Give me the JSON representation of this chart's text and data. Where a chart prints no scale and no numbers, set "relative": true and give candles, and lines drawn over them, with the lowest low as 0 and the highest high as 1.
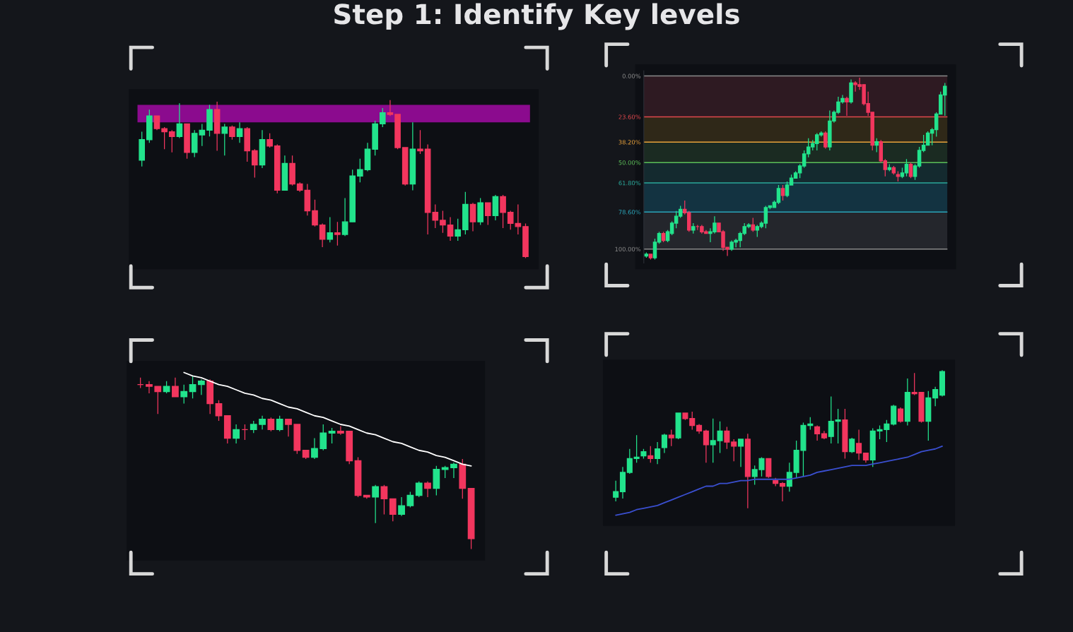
{
  "chart_data": [
    {
      "type": "candlestick",
      "title": "Step 1: Identify Key levels",
      "relative": true,
      "colors": [
        "#22e38c",
        "#22e38c",
        "#f2365e",
        "#f2365e",
        "#f2365e",
        "#22e38c",
        "#f2365e",
        "#22e38c",
        "#22e38c",
        "#22e38c",
        "#f2365e",
        "#22e38c",
        "#f2365e",
        "#22e38c",
        "#f2365e",
        "#f2365e",
        "#22e38c",
        "#f2365e",
        "#f2365e",
        "#22e38c",
        "#f2365e",
        "#f2365e",
        "#f2365e",
        "#f2365e",
        "#f2365e",
        "#22e38c",
        "#f2365e",
        "#22e38c",
        "#22e38c",
        "#22e38c",
        "#22e38c",
        "#22e38c",
        "#22e38c",
        "#f2365e",
        "#f2365e",
        "#f2365e",
        "#22e38c",
        "#f2365e",
        "#f2365e",
        "#f2365e",
        "#f2365e",
        "#f2365e",
        "#22e38c",
        "#22e38c",
        "#f2365e",
        "#22e38c",
        "#f2365e",
        "#22e38c",
        "#f2365e",
        "#f2365e",
        "#f2365e",
        "#f2365e"
      ],
      "categories": [
        null,
        null,
        null,
        null,
        null,
        null,
        null,
        null,
        null,
        null,
        null,
        null,
        null,
        null,
        null,
        null,
        null,
        null,
        null,
        null,
        null,
        null,
        null,
        null,
        null,
        null,
        null,
        null,
        null,
        null,
        null,
        null,
        null,
        null,
        null,
        null,
        null,
        null,
        null,
        null,
        null,
        null,
        null,
        null,
        null,
        null,
        null,
        null,
        null,
        null,
        null,
        null
      ],
      "ohlc": [
        [
          0.62,
          0.8,
          0.58,
          0.75
        ],
        [
          0.75,
          0.94,
          0.73,
          0.9
        ],
        [
          0.9,
          0.9,
          0.81,
          0.82
        ],
        [
          0.82,
          0.83,
          0.69,
          0.8
        ],
        [
          0.8,
          0.81,
          0.67,
          0.77
        ],
        [
          0.77,
          0.98,
          0.76,
          0.85
        ],
        [
          0.85,
          0.85,
          0.63,
          0.67
        ],
        [
          0.67,
          0.81,
          0.64,
          0.79
        ],
        [
          0.78,
          0.85,
          0.71,
          0.81
        ],
        [
          0.81,
          0.97,
          0.77,
          0.94
        ],
        [
          0.94,
          0.99,
          0.68,
          0.79
        ],
        [
          0.79,
          0.85,
          0.65,
          0.83
        ],
        [
          0.83,
          0.84,
          0.75,
          0.77
        ],
        [
          0.77,
          0.86,
          0.73,
          0.82
        ],
        [
          0.82,
          0.83,
          0.61,
          0.68
        ],
        [
          0.68,
          0.69,
          0.51,
          0.59
        ],
        [
          0.59,
          0.81,
          0.57,
          0.75
        ],
        [
          0.75,
          0.79,
          0.7,
          0.71
        ],
        [
          0.71,
          0.72,
          0.41,
          0.43
        ],
        [
          0.43,
          0.65,
          0.43,
          0.6
        ],
        [
          0.6,
          0.65,
          0.46,
          0.47
        ],
        [
          0.47,
          0.48,
          0.42,
          0.43
        ],
        [
          0.43,
          0.47,
          0.27,
          0.3
        ],
        [
          0.3,
          0.37,
          0.2,
          0.21
        ],
        [
          0.21,
          0.22,
          0.07,
          0.12
        ],
        [
          0.12,
          0.26,
          0.1,
          0.16
        ],
        [
          0.16,
          0.23,
          0.08,
          0.15
        ],
        [
          0.15,
          0.38,
          0.14,
          0.23
        ],
        [
          0.23,
          0.56,
          0.23,
          0.52
        ],
        [
          0.52,
          0.63,
          0.48,
          0.56
        ],
        [
          0.56,
          0.73,
          0.55,
          0.69
        ],
        [
          0.69,
          0.87,
          0.65,
          0.85
        ],
        [
          0.85,
          0.95,
          0.83,
          0.92
        ],
        [
          0.92,
          1.0,
          0.9,
          0.91
        ],
        [
          0.91,
          0.91,
          0.69,
          0.7
        ],
        [
          0.7,
          0.7,
          0.46,
          0.47
        ],
        [
          0.47,
          0.86,
          0.43,
          0.69
        ],
        [
          0.69,
          0.81,
          0.66,
          0.68
        ],
        [
          0.69,
          0.72,
          0.15,
          0.29
        ],
        [
          0.29,
          0.34,
          0.19,
          0.24
        ],
        [
          0.24,
          0.3,
          0.16,
          0.21
        ],
        [
          0.21,
          0.26,
          0.11,
          0.14
        ],
        [
          0.14,
          0.25,
          0.11,
          0.18
        ],
        [
          0.18,
          0.42,
          0.15,
          0.34
        ],
        [
          0.34,
          0.35,
          0.17,
          0.23
        ],
        [
          0.23,
          0.38,
          0.21,
          0.35
        ],
        [
          0.35,
          0.35,
          0.21,
          0.27
        ],
        [
          0.27,
          0.4,
          0.24,
          0.39
        ],
        [
          0.39,
          0.4,
          0.19,
          0.29
        ],
        [
          0.29,
          0.3,
          0.18,
          0.22
        ],
        [
          0.22,
          0.34,
          0.15,
          0.2
        ],
        [
          0.2,
          0.22,
          0.0,
          0.01
        ]
      ],
      "bands": [
        {
          "axis": "y",
          "from": 0.86,
          "to": 0.97,
          "color": "#8b0b8e"
        }
      ]
    },
    {
      "type": "candlestick",
      "ylim": [
        108,
        -3
      ],
      "tick_labels": "y",
      "yticks": [
        {
          "value": 0,
          "label": "0.00%"
        },
        {
          "value": 23.6,
          "label": "23.60%"
        },
        {
          "value": 38.2,
          "label": "38.20%"
        },
        {
          "value": 50,
          "label": "50.00%"
        },
        {
          "value": 61.8,
          "label": "61.80%"
        },
        {
          "value": 78.6,
          "label": "78.60%"
        },
        {
          "value": 100,
          "label": "100.00%"
        }
      ],
      "colors": [
        "#22e38c",
        "#f2365e",
        "#22e38c",
        "#22e38c",
        "#f2365e",
        "#22e38c",
        "#22e38c",
        "#22e38c",
        "#22e38c",
        "#f2365e",
        "#f2365e",
        "#22e38c",
        "#f2365e",
        "#f2365e",
        "#f2365e",
        "#22e38c",
        "#22e38c",
        "#f2365e",
        "#f2365e",
        "#f2365e",
        "#22e38c",
        "#22e38c",
        "#22e38c",
        "#22e38c",
        "#22e38c",
        "#f2365e",
        "#22e38c",
        "#22e38c",
        "#22e38c",
        "#22e38c",
        "#22e38c",
        "#22e38c",
        "#f2365e",
        "#22e38c",
        "#22e38c",
        "#22e38c",
        "#22e38c",
        "#22e38c",
        "#22e38c",
        "#22e38c",
        "#22e38c",
        "#22e38c",
        "#f2365e",
        "#22e38c",
        "#22e38c",
        "#22e38c",
        "#22e38c",
        "#f2365e",
        "#22e38c",
        "#f2365e",
        "#f2365e",
        "#f2365e",
        "#f2365e",
        "#f2365e",
        "#22e38c",
        "#f2365e",
        "#f2365e",
        "#22e38c",
        "#f2365e",
        "#f2365e",
        "#22e38c",
        "#22e38c",
        "#f2365e",
        "#22e38c",
        "#22e38c",
        "#22e38c",
        "#22e38c",
        "#22e38c",
        "#22e38c",
        "#22e38c",
        "#22e38c"
      ],
      "categories": [
        null,
        null,
        null,
        null,
        null,
        null,
        null,
        null,
        null,
        null,
        null,
        null,
        null,
        null,
        null,
        null,
        null,
        null,
        null,
        null,
        null,
        null,
        null,
        null,
        null,
        null,
        null,
        null,
        null,
        null,
        null,
        null,
        null,
        null,
        null,
        null,
        null,
        null,
        null,
        null,
        null,
        null,
        null,
        null,
        null,
        null,
        null,
        null,
        null,
        null,
        null,
        null,
        null,
        null,
        null,
        null,
        null,
        null,
        null,
        null,
        null,
        null,
        null,
        null,
        null,
        null,
        null,
        null,
        null,
        null,
        null
      ],
      "ohlc": [
        [
          104,
          105,
          102,
          103
        ],
        [
          103,
          106,
          103,
          105
        ],
        [
          105,
          106,
          94,
          96
        ],
        [
          96,
          97,
          90,
          91
        ],
        [
          91,
          96,
          90,
          95
        ],
        [
          95,
          96,
          89,
          90
        ],
        [
          91,
          92,
          84,
          85
        ],
        [
          85,
          88,
          78,
          81
        ],
        [
          81,
          82,
          75,
          77
        ],
        [
          77,
          80,
          72,
          79
        ],
        [
          79,
          90,
          78,
          89
        ],
        [
          89,
          91,
          85,
          87
        ],
        [
          87,
          89,
          86,
          87
        ],
        [
          87,
          91,
          86,
          90
        ],
        [
          90,
          91,
          89,
          91
        ],
        [
          91,
          96,
          88,
          90
        ],
        [
          90,
          91,
          81,
          85
        ],
        [
          85,
          90,
          85,
          90
        ],
        [
          90,
          101,
          89,
          99
        ],
        [
          99,
          104,
          99,
          100
        ],
        [
          100,
          101,
          95,
          96
        ],
        [
          96,
          99,
          94,
          95
        ],
        [
          95,
          99,
          90,
          91
        ],
        [
          91,
          92,
          85,
          87
        ],
        [
          87,
          88,
          85,
          86
        ],
        [
          86,
          90,
          82,
          89
        ],
        [
          89,
          93,
          86,
          87
        ],
        [
          87,
          88,
          84,
          85
        ],
        [
          85,
          88,
          75,
          76
        ],
        [
          76,
          77,
          75,
          75
        ],
        [
          76,
          76,
          72,
          73
        ],
        [
          73,
          74,
          63,
          65
        ],
        [
          65,
          72,
          63,
          69
        ],
        [
          69,
          70,
          61,
          63
        ],
        [
          63,
          63,
          57,
          59
        ],
        [
          59,
          59,
          55,
          56
        ],
        [
          56,
          59,
          51,
          52
        ],
        [
          52,
          53,
          43,
          45
        ],
        [
          45,
          47,
          36,
          41
        ],
        [
          41,
          43,
          37,
          39
        ],
        [
          39,
          43,
          33,
          34
        ],
        [
          34,
          35,
          32,
          33
        ],
        [
          33,
          42,
          32,
          41
        ],
        [
          41,
          43,
          20,
          26
        ],
        [
          26,
          27,
          20,
          21
        ],
        [
          21,
          22,
          12,
          15
        ],
        [
          15,
          16,
          11,
          13
        ],
        [
          13,
          23,
          12,
          15
        ],
        [
          15,
          16,
          2,
          4
        ],
        [
          4,
          9,
          3,
          5
        ],
        [
          5,
          8,
          1,
          6
        ],
        [
          5,
          17,
          5,
          16
        ],
        [
          16,
          23,
          9,
          21
        ],
        [
          21,
          43,
          21,
          40
        ],
        [
          40,
          44,
          36,
          38
        ],
        [
          38,
          50,
          37,
          49
        ],
        [
          49,
          58,
          48,
          54
        ],
        [
          54,
          55,
          51,
          53
        ],
        [
          53,
          57,
          52,
          56
        ],
        [
          57,
          61,
          55,
          58
        ],
        [
          58,
          59,
          53,
          56
        ],
        [
          56,
          58,
          48,
          51
        ],
        [
          51,
          59,
          50,
          58
        ],
        [
          58,
          60,
          51,
          52
        ],
        [
          52,
          53,
          41,
          43
        ],
        [
          43,
          44,
          34,
          40
        ],
        [
          40,
          40,
          32,
          33
        ],
        [
          33,
          40,
          30,
          31
        ],
        [
          31,
          35,
          21,
          22
        ],
        [
          22,
          22,
          9,
          11
        ],
        [
          11,
          23,
          4,
          6
        ]
      ],
      "bands": [
        {
          "axis": "y",
          "from": 0,
          "to": 23.6,
          "color": "#2e1a22"
        },
        {
          "axis": "y",
          "from": 23.6,
          "to": 38.2,
          "color": "#2f2818"
        },
        {
          "axis": "y",
          "from": 38.2,
          "to": 50,
          "color": "#1b2b22"
        },
        {
          "axis": "y",
          "from": 50,
          "to": 61.8,
          "color": "#142a2f"
        },
        {
          "axis": "y",
          "from": 61.8,
          "to": 78.6,
          "color": "#133341"
        },
        {
          "axis": "y",
          "from": 78.6,
          "to": 100,
          "color": "#24262c"
        }
      ],
      "ref_lines": [
        {
          "axis": "y",
          "value": 0,
          "color": "#8a8a8a"
        },
        {
          "axis": "y",
          "value": 23.6,
          "color": "#e0474c"
        },
        {
          "axis": "y",
          "value": 38.2,
          "color": "#e8a13a"
        },
        {
          "axis": "y",
          "value": 50,
          "color": "#5bbf58"
        },
        {
          "axis": "y",
          "value": 61.8,
          "color": "#2aa89a"
        },
        {
          "axis": "y",
          "value": 78.6,
          "color": "#2aa4b8"
        },
        {
          "axis": "y",
          "value": 100,
          "color": "#8a8a8a"
        }
      ]
    },
    {
      "type": "candlestick",
      "relative": true,
      "colors": [
        "#f2365e",
        "#f2365e",
        "#f2365e",
        "#22e38c",
        "#f2365e",
        "#22e38c",
        "#22e38c",
        "#22e38c",
        "#f2365e",
        "#f2365e",
        "#f2365e",
        "#22e38c",
        "#f2365e",
        "#22e38c",
        "#22e38c",
        "#f2365e",
        "#22e38c",
        "#f2365e",
        "#f2365e",
        "#f2365e",
        "#22e38c",
        "#22e38c",
        "#22e38c",
        "#f2365e",
        "#f2365e",
        "#f2365e",
        "#f2365e",
        "#22e38c",
        "#f2365e",
        "#f2365e",
        "#22e38c",
        "#22e38c",
        "#22e38c",
        "#f2365e",
        "#22e38c",
        "#22e38c",
        "#22e38c",
        "#f2365e",
        "#f2365e"
      ],
      "categories": [
        null,
        null,
        null,
        null,
        null,
        null,
        null,
        null,
        null,
        null,
        null,
        null,
        null,
        null,
        null,
        null,
        null,
        null,
        null,
        null,
        null,
        null,
        null,
        null,
        null,
        null,
        null,
        null,
        null,
        null,
        null,
        null,
        null,
        null,
        null,
        null,
        null,
        null,
        null
      ],
      "ohlc": [
        [
          0.95,
          0.99,
          0.93,
          0.95
        ],
        [
          0.95,
          0.97,
          0.9,
          0.94
        ],
        [
          0.94,
          0.94,
          0.78,
          0.91
        ],
        [
          0.91,
          0.97,
          0.9,
          0.94
        ],
        [
          0.94,
          0.99,
          0.88,
          0.88
        ],
        [
          0.88,
          0.95,
          0.84,
          0.91
        ],
        [
          0.91,
          1.0,
          0.87,
          0.95
        ],
        [
          0.95,
          0.98,
          0.89,
          0.97
        ],
        [
          0.97,
          0.98,
          0.78,
          0.84
        ],
        [
          0.84,
          0.86,
          0.74,
          0.77
        ],
        [
          0.77,
          0.77,
          0.61,
          0.64
        ],
        [
          0.64,
          0.72,
          0.61,
          0.69
        ],
        [
          0.69,
          0.72,
          0.63,
          0.69
        ],
        [
          0.69,
          0.74,
          0.67,
          0.72
        ],
        [
          0.72,
          0.77,
          0.69,
          0.75
        ],
        [
          0.75,
          0.76,
          0.68,
          0.69
        ],
        [
          0.69,
          0.77,
          0.68,
          0.75
        ],
        [
          0.75,
          0.75,
          0.65,
          0.72
        ],
        [
          0.72,
          0.72,
          0.55,
          0.57
        ],
        [
          0.57,
          0.57,
          0.52,
          0.53
        ],
        [
          0.53,
          0.64,
          0.52,
          0.58
        ],
        [
          0.58,
          0.72,
          0.57,
          0.67
        ],
        [
          0.67,
          0.7,
          0.61,
          0.68
        ],
        [
          0.68,
          0.71,
          0.66,
          0.67
        ],
        [
          0.68,
          0.68,
          0.49,
          0.51
        ],
        [
          0.51,
          0.53,
          0.3,
          0.31
        ],
        [
          0.31,
          0.31,
          0.29,
          0.3
        ],
        [
          0.3,
          0.37,
          0.15,
          0.36
        ],
        [
          0.36,
          0.37,
          0.2,
          0.29
        ],
        [
          0.29,
          0.29,
          0.16,
          0.2
        ],
        [
          0.2,
          0.3,
          0.19,
          0.25
        ],
        [
          0.25,
          0.33,
          0.24,
          0.31
        ],
        [
          0.31,
          0.39,
          0.3,
          0.38
        ],
        [
          0.38,
          0.39,
          0.3,
          0.35
        ],
        [
          0.35,
          0.48,
          0.31,
          0.46
        ],
        [
          0.46,
          0.48,
          0.41,
          0.47
        ],
        [
          0.47,
          0.5,
          0.41,
          0.49
        ],
        [
          0.49,
          0.52,
          0.29,
          0.35
        ],
        [
          0.35,
          0.35,
          0.0,
          0.06
        ]
      ],
      "series": [
        {
          "type": "line",
          "color": "#ffffff",
          "values": [
            null,
            null,
            null,
            null,
            null,
            1.02,
            1.0,
            0.99,
            0.97,
            0.95,
            0.94,
            0.92,
            0.9,
            0.89,
            0.87,
            0.86,
            0.84,
            0.82,
            0.81,
            0.79,
            0.77,
            0.76,
            0.74,
            0.72,
            0.71,
            0.69,
            0.67,
            0.66,
            0.64,
            0.62,
            0.61,
            0.59,
            0.57,
            0.56,
            0.54,
            0.53,
            0.51,
            0.49,
            0.48
          ]
        }
      ]
    },
    {
      "type": "candlestick",
      "relative": true,
      "colors": [
        "#22e38c",
        "#22e38c",
        "#22e38c",
        "#22e38c",
        "#22e38c",
        "#f2365e",
        "#22e38c",
        "#22e38c",
        "#f2365e",
        "#22e38c",
        "#f2365e",
        "#f2365e",
        "#f2365e",
        "#f2365e",
        "#22e38c",
        "#22e38c",
        "#f2365e",
        "#f2365e",
        "#22e38c",
        "#f2365e",
        "#22e38c",
        "#22e38c",
        "#f2365e",
        "#f2365e",
        "#f2365e",
        "#22e38c",
        "#22e38c",
        "#22e38c",
        "#22e38c",
        "#f2365e",
        "#f2365e",
        "#22e38c",
        "#22e38c",
        "#f2365e",
        "#22e38c",
        "#f2365e",
        "#f2365e",
        "#22e38c",
        "#22e38c",
        "#22e38c",
        "#22e38c",
        "#f2365e",
        "#22e38c",
        "#f2365e",
        "#f2365e",
        "#22e38c",
        "#22e38c",
        "#22e38c"
      ],
      "categories": [
        null,
        null,
        null,
        null,
        null,
        null,
        null,
        null,
        null,
        null,
        null,
        null,
        null,
        null,
        null,
        null,
        null,
        null,
        null,
        null,
        null,
        null,
        null,
        null,
        null,
        null,
        null,
        null,
        null,
        null,
        null,
        null,
        null,
        null,
        null,
        null,
        null,
        null,
        null,
        null,
        null,
        null,
        null,
        null,
        null,
        null,
        null,
        null
      ],
      "ohlc": [
        [
          0.08,
          0.2,
          0.05,
          0.12
        ],
        [
          0.12,
          0.3,
          0.07,
          0.26
        ],
        [
          0.26,
          0.43,
          0.25,
          0.36
        ],
        [
          0.36,
          0.53,
          0.33,
          0.37
        ],
        [
          0.38,
          0.43,
          0.36,
          0.41
        ],
        [
          0.38,
          0.45,
          0.33,
          0.36
        ],
        [
          0.36,
          0.48,
          0.32,
          0.43
        ],
        [
          0.44,
          0.54,
          0.4,
          0.53
        ],
        [
          0.53,
          0.57,
          0.45,
          0.51
        ],
        [
          0.51,
          0.69,
          0.5,
          0.69
        ],
        [
          0.69,
          0.69,
          0.64,
          0.65
        ],
        [
          0.65,
          0.7,
          0.57,
          0.6
        ],
        [
          0.6,
          0.61,
          0.54,
          0.56
        ],
        [
          0.56,
          0.57,
          0.33,
          0.46
        ],
        [
          0.46,
          0.65,
          0.33,
          0.49
        ],
        [
          0.49,
          0.63,
          0.4,
          0.56
        ],
        [
          0.56,
          0.59,
          0.43,
          0.48
        ],
        [
          0.48,
          0.5,
          0.34,
          0.45
        ],
        [
          0.45,
          0.5,
          0.3,
          0.5
        ],
        [
          0.5,
          0.54,
          0.0,
          0.23
        ],
        [
          0.23,
          0.31,
          0.17,
          0.28
        ],
        [
          0.28,
          0.37,
          0.23,
          0.36
        ],
        [
          0.36,
          0.36,
          0.22,
          0.23
        ],
        [
          0.2,
          0.22,
          0.16,
          0.18
        ],
        [
          0.18,
          0.19,
          0.05,
          0.16
        ],
        [
          0.16,
          0.33,
          0.12,
          0.26
        ],
        [
          0.26,
          0.49,
          0.22,
          0.42
        ],
        [
          0.42,
          0.62,
          0.23,
          0.6
        ],
        [
          0.6,
          0.66,
          0.57,
          0.61
        ],
        [
          0.59,
          0.6,
          0.49,
          0.54
        ],
        [
          0.54,
          0.56,
          0.5,
          0.51
        ],
        [
          0.52,
          0.81,
          0.47,
          0.63
        ],
        [
          0.63,
          0.72,
          0.47,
          0.64
        ],
        [
          0.64,
          0.72,
          0.36,
          0.41
        ],
        [
          0.41,
          0.51,
          0.4,
          0.5
        ],
        [
          0.47,
          0.57,
          0.35,
          0.4
        ],
        [
          0.4,
          0.4,
          0.33,
          0.35
        ],
        [
          0.35,
          0.58,
          0.3,
          0.56
        ],
        [
          0.56,
          0.6,
          0.5,
          0.57
        ],
        [
          0.57,
          0.64,
          0.48,
          0.61
        ],
        [
          0.61,
          0.75,
          0.6,
          0.74
        ],
        [
          0.72,
          0.73,
          0.62,
          0.63
        ],
        [
          0.63,
          0.94,
          0.6,
          0.84
        ],
        [
          0.84,
          0.98,
          0.82,
          0.83
        ],
        [
          0.84,
          0.84,
          0.62,
          0.63
        ],
        [
          0.63,
          0.85,
          0.49,
          0.8
        ],
        [
          0.8,
          0.88,
          0.74,
          0.86
        ],
        [
          0.82,
          1.0,
          0.81,
          0.99
        ]
      ],
      "series": [
        {
          "type": "line",
          "color": "#3a4fd0",
          "values": [
            -0.05,
            -0.04,
            -0.03,
            -0.01,
            0.0,
            0.01,
            0.02,
            0.04,
            0.06,
            0.08,
            0.1,
            0.12,
            0.14,
            0.16,
            0.16,
            0.18,
            0.18,
            0.19,
            0.2,
            0.2,
            0.21,
            0.21,
            0.21,
            0.21,
            0.21,
            0.21,
            0.22,
            0.23,
            0.24,
            0.26,
            0.27,
            0.28,
            0.29,
            0.3,
            0.31,
            0.31,
            0.31,
            0.32,
            0.33,
            0.34,
            0.35,
            0.36,
            0.37,
            0.39,
            0.41,
            0.42,
            0.43,
            0.45
          ]
        }
      ]
    }
  ]
}
